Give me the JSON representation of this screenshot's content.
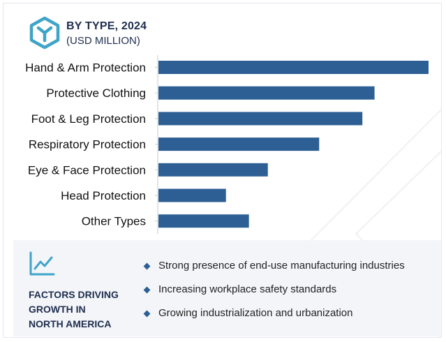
{
  "header": {
    "title": "BY TYPE, 2024",
    "subtitle": "(USD MILLION)",
    "logo_icon": "hexagon-y-logo-icon"
  },
  "colors": {
    "bar": "#2d5f94",
    "title": "#1f2d4e",
    "accent": "#3fa4c8",
    "panel_bg": "#f3f5f9"
  },
  "chart_data": {
    "type": "bar",
    "orientation": "horizontal",
    "categories": [
      "Hand & Arm Protection",
      "Protective Clothing",
      "Foot & Leg Protection",
      "Respiratory Protection",
      "Eye & Face Protection",
      "Head Protection",
      "Other Types"
    ],
    "values": [
      100,
      80,
      75.5,
      59.5,
      40.5,
      25,
      33.5
    ],
    "title": "BY TYPE, 2024",
    "subtitle": "(USD MILLION)",
    "xlim": [
      0,
      100
    ],
    "grid": false,
    "legend": "none"
  },
  "factors": {
    "icon": "line-chart-icon",
    "title_lines": [
      "FACTORS DRIVING",
      "GROWTH IN",
      "NORTH AMERICA"
    ],
    "items": [
      "Strong presence of end-use manufacturing industries",
      "Increasing workplace safety standards",
      "Growing industrialization and urbanization"
    ]
  }
}
